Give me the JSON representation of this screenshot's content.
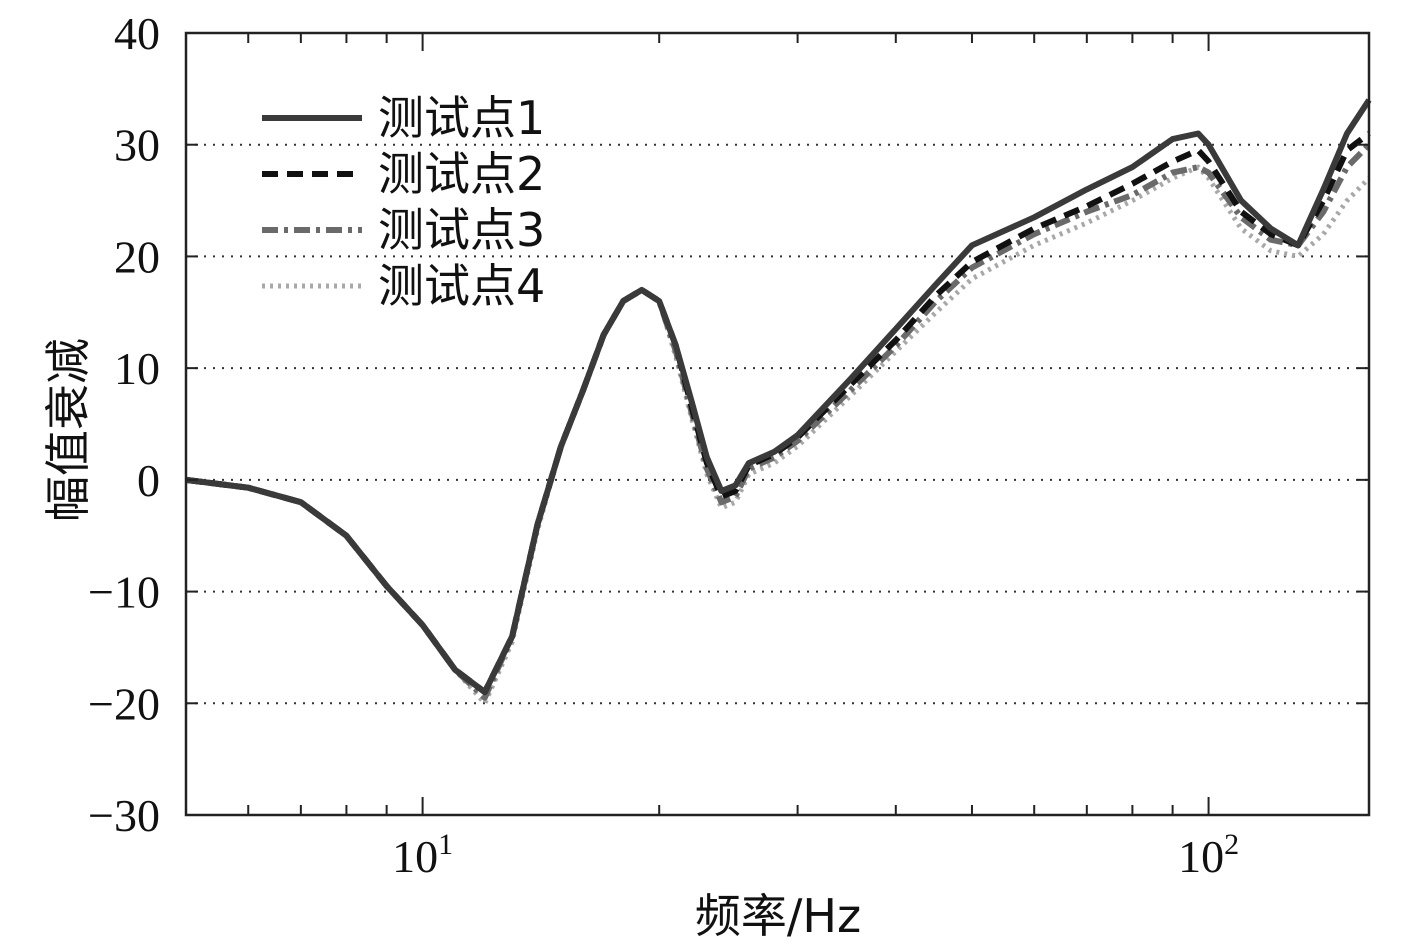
{
  "chart_data": {
    "type": "line",
    "xlabel": "频率/Hz",
    "ylabel": "幅值衰减",
    "xscale": "log",
    "xlim": [
      5,
      160
    ],
    "ylim": [
      -30,
      40
    ],
    "yticks": [
      -30,
      -20,
      -10,
      0,
      10,
      20,
      30,
      40
    ],
    "ytick_labels": [
      "−30",
      "−20",
      "−10",
      "0",
      "10",
      "20",
      "30",
      "40"
    ],
    "xticks": [
      {
        "value": 10,
        "base": "10",
        "exp": "1"
      },
      {
        "value": 100,
        "base": "10",
        "exp": "2"
      }
    ],
    "grid": "horizontal-dotted",
    "legend": "top-left",
    "series": [
      {
        "name": "测试点1",
        "style": "solid",
        "color": "#3a3a3a",
        "points": [
          [
            5,
            0
          ],
          [
            6,
            -0.7
          ],
          [
            7,
            -2
          ],
          [
            8,
            -5
          ],
          [
            9,
            -9.5
          ],
          [
            10,
            -13
          ],
          [
            11,
            -17
          ],
          [
            12,
            -19
          ],
          [
            13,
            -14
          ],
          [
            14,
            -4
          ],
          [
            15,
            3
          ],
          [
            16,
            8
          ],
          [
            17,
            13
          ],
          [
            18,
            16
          ],
          [
            19,
            17
          ],
          [
            20,
            16
          ],
          [
            21,
            12
          ],
          [
            22,
            7
          ],
          [
            23,
            2
          ],
          [
            24,
            -1
          ],
          [
            25,
            -0.5
          ],
          [
            26,
            1.5
          ],
          [
            28,
            2.5
          ],
          [
            30,
            4
          ],
          [
            35,
            9
          ],
          [
            40,
            13.5
          ],
          [
            45,
            17.5
          ],
          [
            50,
            21
          ],
          [
            60,
            23.5
          ],
          [
            70,
            26
          ],
          [
            80,
            28
          ],
          [
            90,
            30.5
          ],
          [
            97,
            31
          ],
          [
            100,
            30
          ],
          [
            110,
            25
          ],
          [
            120,
            22.5
          ],
          [
            130,
            21
          ],
          [
            140,
            26
          ],
          [
            150,
            31
          ],
          [
            160,
            34
          ]
        ]
      },
      {
        "name": "测试点2",
        "style": "dashed",
        "color": "#111111",
        "points": [
          [
            5,
            0
          ],
          [
            6,
            -0.7
          ],
          [
            7,
            -2
          ],
          [
            8,
            -5
          ],
          [
            9,
            -9.5
          ],
          [
            10,
            -13
          ],
          [
            11,
            -17
          ],
          [
            12,
            -19
          ],
          [
            13,
            -14
          ],
          [
            14,
            -4
          ],
          [
            15,
            3
          ],
          [
            16,
            8
          ],
          [
            17,
            13
          ],
          [
            18,
            16
          ],
          [
            19,
            17
          ],
          [
            20,
            16
          ],
          [
            21,
            12
          ],
          [
            22,
            6.5
          ],
          [
            23,
            1.5
          ],
          [
            24,
            -1.5
          ],
          [
            25,
            -1
          ],
          [
            26,
            1.3
          ],
          [
            28,
            2.3
          ],
          [
            30,
            3.8
          ],
          [
            35,
            8.5
          ],
          [
            40,
            12.5
          ],
          [
            45,
            16.5
          ],
          [
            50,
            19.5
          ],
          [
            60,
            22.5
          ],
          [
            70,
            24.5
          ],
          [
            80,
            26.5
          ],
          [
            90,
            28.5
          ],
          [
            97,
            29.5
          ],
          [
            100,
            28.5
          ],
          [
            110,
            24
          ],
          [
            120,
            22
          ],
          [
            130,
            21
          ],
          [
            140,
            25
          ],
          [
            150,
            29.5
          ],
          [
            160,
            31
          ]
        ]
      },
      {
        "name": "测试点3",
        "style": "dashdot",
        "color": "#6a6a6a",
        "points": [
          [
            5,
            0
          ],
          [
            6,
            -0.7
          ],
          [
            7,
            -2
          ],
          [
            8,
            -5
          ],
          [
            9,
            -9.5
          ],
          [
            10,
            -13
          ],
          [
            11,
            -17
          ],
          [
            12,
            -19.5
          ],
          [
            13,
            -14
          ],
          [
            14,
            -4
          ],
          [
            15,
            3
          ],
          [
            16,
            8
          ],
          [
            17,
            13
          ],
          [
            18,
            16
          ],
          [
            19,
            17
          ],
          [
            20,
            16
          ],
          [
            21,
            11.5
          ],
          [
            22,
            6
          ],
          [
            23,
            1
          ],
          [
            24,
            -2
          ],
          [
            25,
            -1.5
          ],
          [
            26,
            1
          ],
          [
            28,
            2
          ],
          [
            30,
            3.5
          ],
          [
            35,
            8
          ],
          [
            40,
            12
          ],
          [
            45,
            16
          ],
          [
            50,
            19
          ],
          [
            60,
            22
          ],
          [
            70,
            24
          ],
          [
            80,
            25.5
          ],
          [
            90,
            27.5
          ],
          [
            97,
            28
          ],
          [
            100,
            27.5
          ],
          [
            110,
            23.5
          ],
          [
            120,
            21.5
          ],
          [
            130,
            21
          ],
          [
            140,
            24
          ],
          [
            150,
            28
          ],
          [
            160,
            30
          ]
        ]
      },
      {
        "name": "测试点4",
        "style": "dotted",
        "color": "#a8a8a8",
        "points": [
          [
            5,
            0
          ],
          [
            6,
            -0.7
          ],
          [
            7,
            -2
          ],
          [
            8,
            -5
          ],
          [
            9,
            -9.5
          ],
          [
            10,
            -13
          ],
          [
            11,
            -17
          ],
          [
            12,
            -20
          ],
          [
            13,
            -14.5
          ],
          [
            14,
            -4.5
          ],
          [
            15,
            3
          ],
          [
            16,
            8
          ],
          [
            17,
            13
          ],
          [
            18,
            16
          ],
          [
            19,
            17
          ],
          [
            20,
            16
          ],
          [
            21,
            11
          ],
          [
            22,
            5.5
          ],
          [
            23,
            0.5
          ],
          [
            24,
            -2.5
          ],
          [
            25,
            -2
          ],
          [
            26,
            0.5
          ],
          [
            28,
            1.5
          ],
          [
            30,
            3
          ],
          [
            35,
            7.5
          ],
          [
            40,
            11.5
          ],
          [
            45,
            15
          ],
          [
            50,
            18
          ],
          [
            60,
            21
          ],
          [
            70,
            23
          ],
          [
            80,
            25
          ],
          [
            90,
            27
          ],
          [
            97,
            28
          ],
          [
            100,
            27
          ],
          [
            110,
            22.5
          ],
          [
            120,
            20.5
          ],
          [
            130,
            20
          ],
          [
            140,
            22
          ],
          [
            150,
            25
          ],
          [
            160,
            27
          ]
        ]
      }
    ]
  }
}
